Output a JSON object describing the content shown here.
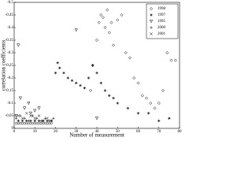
{
  "chart_data": {
    "type": "scatter",
    "x_label": "Number of measurement",
    "y_label": "correlation coefficients",
    "xlim": [
      0,
      80
    ],
    "xticks": [
      0,
      10,
      20,
      30,
      40,
      50,
      60,
      70,
      80
    ],
    "ylim": [
      0,
      -0.5
    ],
    "yticks": [
      0,
      -0.05,
      -0.1,
      -0.15,
      -0.2,
      -0.25,
      -0.3,
      -0.35,
      -0.4,
      -0.45,
      -0.5
    ],
    "legend": "upper right",
    "series": [
      {
        "name": "1998",
        "marker": "diamond",
        "color": "#000000",
        "x": [
          1,
          2,
          3,
          4,
          5,
          6,
          7,
          8,
          9,
          10,
          11,
          12,
          13,
          14,
          15,
          16,
          17,
          18,
          37,
          38,
          40,
          41,
          42,
          43,
          44,
          45,
          46,
          47,
          48,
          50,
          52,
          54,
          56,
          58,
          60,
          62,
          64,
          66,
          68,
          70,
          72,
          74,
          76,
          78
        ],
        "values": [
          -0.02,
          -0.02,
          -0.02,
          -0.02,
          -0.02,
          -0.02,
          -0.02,
          -0.02,
          -0.02,
          -0.02,
          -0.02,
          -0.02,
          -0.02,
          -0.02,
          -0.02,
          -0.02,
          -0.02,
          -0.02,
          -0.15,
          -0.25,
          -0.35,
          -0.42,
          -0.45,
          -0.44,
          -0.4,
          -0.47,
          -0.38,
          -0.42,
          -0.33,
          -0.43,
          -0.45,
          -0.3,
          -0.28,
          -0.2,
          -0.18,
          -0.13,
          -0.12,
          -0.1,
          -0.08,
          -0.1,
          -0.15,
          -0.3,
          -0.27,
          -0.27
        ]
      },
      {
        "name": "1997",
        "marker": "star",
        "color": "#000000",
        "x": [
          2,
          4,
          6,
          8,
          10,
          12,
          14,
          16,
          18,
          20,
          21,
          22,
          24,
          26,
          28,
          30,
          32,
          34,
          36,
          38,
          40,
          42,
          44,
          46,
          48,
          50,
          55,
          60,
          65,
          70,
          75
        ],
        "values": [
          -0.03,
          -0.03,
          -0.03,
          -0.03,
          -0.03,
          -0.03,
          -0.03,
          -0.03,
          -0.03,
          -0.22,
          -0.26,
          -0.24,
          -0.22,
          -0.2,
          -0.19,
          -0.18,
          -0.17,
          -0.16,
          -0.2,
          -0.25,
          -0.22,
          -0.18,
          -0.15,
          -0.13,
          -0.12,
          -0.1,
          -0.08,
          -0.06,
          -0.06,
          -0.03,
          -0.04
        ]
      },
      {
        "name": "1995",
        "marker": "triangle",
        "color": "#000000",
        "x": [
          1,
          2,
          3,
          5,
          7,
          8,
          10,
          12,
          30,
          40
        ],
        "values": [
          -0.05,
          -0.33,
          -0.12,
          -0.08,
          -0.1,
          -0.06,
          -0.07,
          -0.08,
          -0.39,
          -0.04
        ]
      },
      {
        "name": "2000",
        "marker": "plus",
        "color": "#000000",
        "x": [
          1,
          3,
          5,
          7,
          9,
          11,
          13,
          15,
          17,
          19
        ],
        "values": [
          -0.04,
          -0.05,
          -0.04,
          -0.03,
          -0.05,
          -0.04,
          -0.03,
          -0.04,
          -0.03,
          -0.04
        ]
      },
      {
        "name": "2001",
        "marker": "cross",
        "color": "#000000",
        "x": [
          2,
          4,
          6,
          8,
          10,
          12,
          14,
          16,
          18
        ],
        "values": [
          -0.05,
          -0.04,
          -0.06,
          -0.05,
          -0.04,
          -0.05,
          -0.03,
          -0.04,
          -0.03
        ]
      }
    ]
  }
}
